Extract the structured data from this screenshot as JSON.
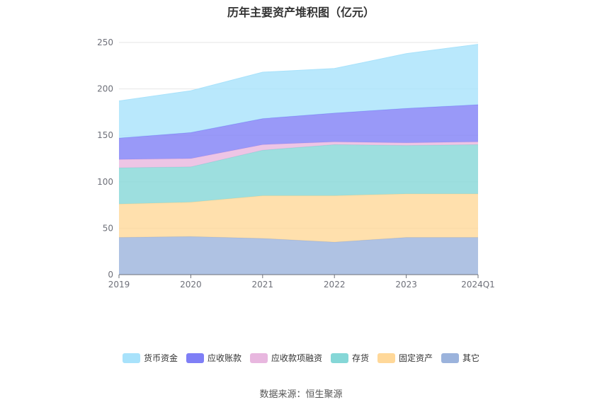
{
  "chart_data": {
    "type": "area",
    "stacked": true,
    "title": "历年主要资产堆积图（亿元）",
    "categories": [
      "2019",
      "2020",
      "2021",
      "2022",
      "2023",
      "2024Q1"
    ],
    "ylim": [
      0,
      250
    ],
    "yticks": [
      "0",
      "50",
      "100",
      "150",
      "200",
      "250"
    ],
    "grid": true,
    "legend_position": "bottom",
    "series": [
      {
        "name": "其它",
        "color": "#9bb3dc",
        "values": [
          40,
          41,
          39,
          35,
          40,
          40
        ]
      },
      {
        "name": "固定资产",
        "color": "#ffd899",
        "values": [
          36,
          37,
          46,
          50,
          47,
          47
        ]
      },
      {
        "name": "存货",
        "color": "#85d7d7",
        "values": [
          39,
          38,
          49,
          55,
          52,
          53
        ]
      },
      {
        "name": "应收款项融资",
        "color": "#e8b7df",
        "values": [
          9,
          9,
          6,
          3,
          3,
          3
        ]
      },
      {
        "name": "应收账款",
        "color": "#7f7ff6",
        "values": [
          23,
          28,
          28,
          31,
          37,
          40
        ]
      },
      {
        "name": "货币资金",
        "color": "#a8e2fb",
        "values": [
          40,
          45,
          50,
          48,
          59,
          65
        ]
      }
    ]
  },
  "legend": [
    {
      "label": "货币资金",
      "color": "#a8e2fb"
    },
    {
      "label": "应收账款",
      "color": "#7f7ff6"
    },
    {
      "label": "应收款项融资",
      "color": "#e8b7df"
    },
    {
      "label": "存货",
      "color": "#85d7d7"
    },
    {
      "label": "固定资产",
      "color": "#ffd899"
    },
    {
      "label": "其它",
      "color": "#9bb3dc"
    }
  ],
  "source": "数据来源：恒生聚源"
}
